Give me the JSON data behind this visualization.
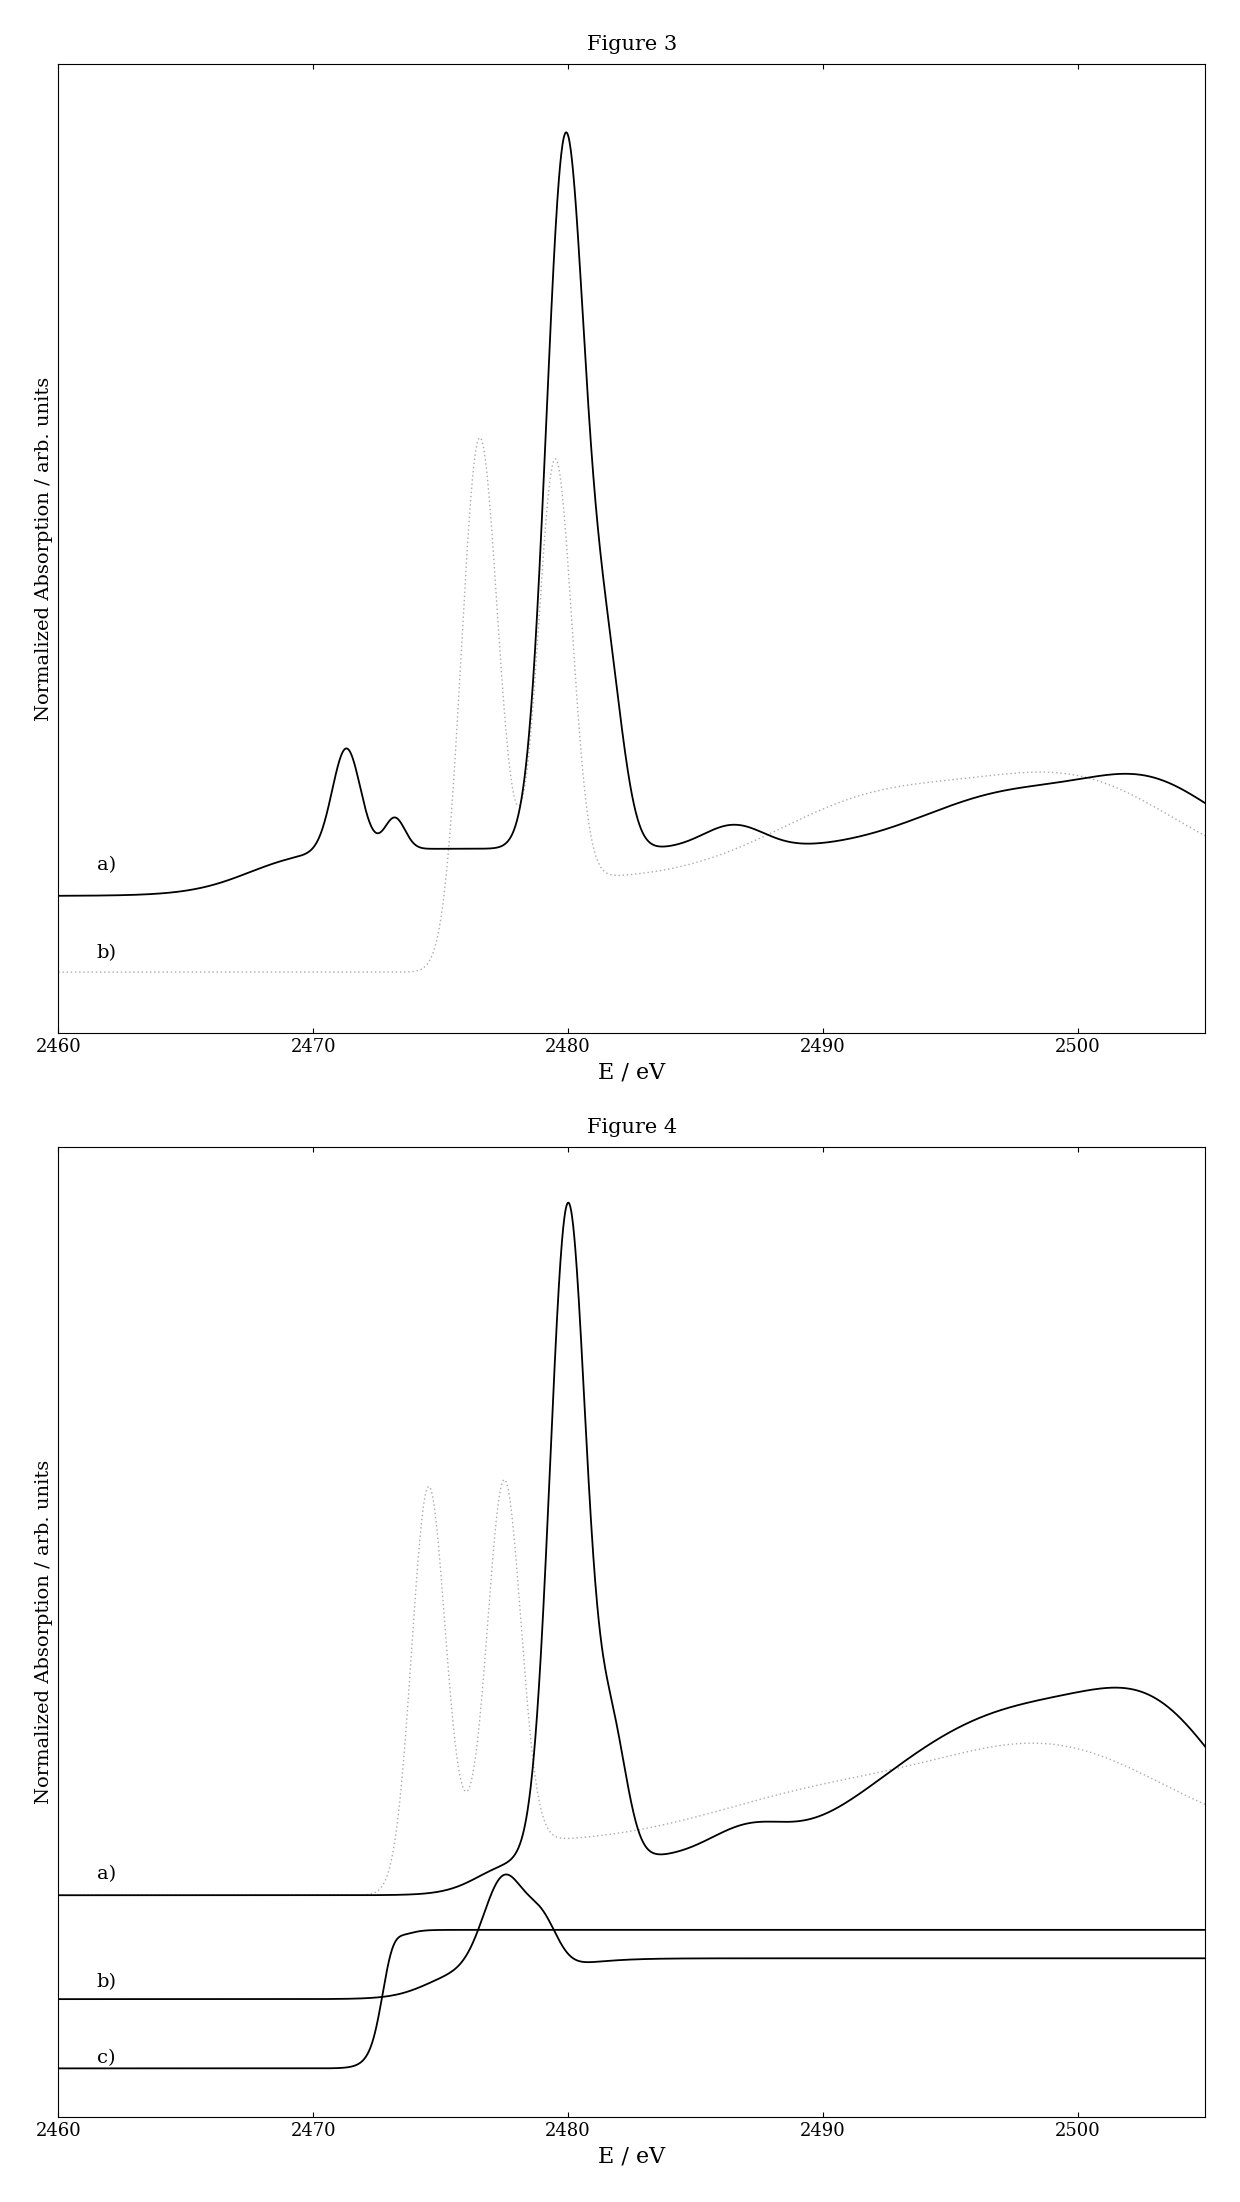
{
  "fig3_title": "Figure 3",
  "fig4_title": "Figure 4",
  "xlabel": "E / eV",
  "ylabel": "Normalized Absorption / arb. units",
  "xmin": 2460,
  "xmax": 2505,
  "background_color": "#ffffff",
  "line_color_black": "#000000",
  "line_color_gray": "#aaaaaa",
  "xticks": [
    2460,
    2470,
    2480,
    2490,
    2500
  ],
  "fig3_labels": [
    "a)",
    "b)"
  ],
  "fig4_labels": [
    "a)",
    "b)",
    "c)"
  ]
}
